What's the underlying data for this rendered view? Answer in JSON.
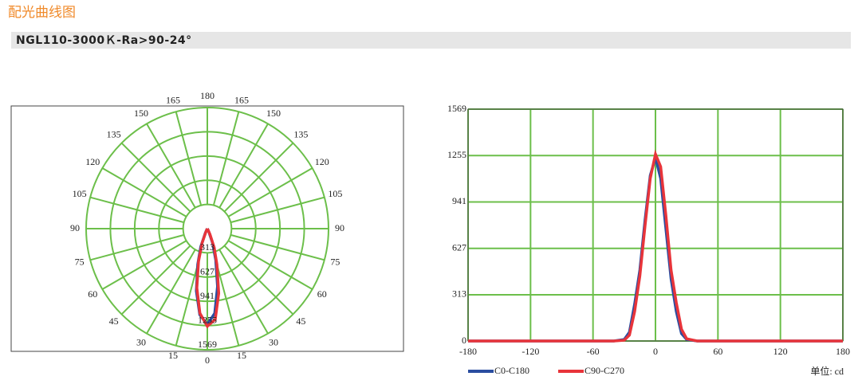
{
  "header": {
    "title": "配光曲线图",
    "model": "NGL110-3000Ｋ-Ra>90-24°"
  },
  "chart_data": [
    {
      "type": "polar",
      "angle_ticks": [
        0,
        15,
        30,
        45,
        60,
        75,
        90,
        105,
        120,
        135,
        150,
        165,
        180
      ],
      "rlim": [
        0,
        1569
      ],
      "rticks": [
        313,
        627,
        941,
        1255,
        1569
      ],
      "grid_color": "#6cbf4a",
      "series": [
        {
          "color": "#2a4da0",
          "x": [
            -180,
            -90,
            -40,
            -30,
            -25,
            -20,
            -15,
            -10,
            -5,
            0,
            5,
            10,
            15,
            20,
            25,
            30,
            40,
            90,
            180
          ],
          "values": [
            0,
            0,
            0,
            10,
            60,
            250,
            480,
            820,
            1120,
            1240,
            1100,
            760,
            420,
            200,
            50,
            10,
            0,
            0,
            0
          ]
        },
        {
          "color": "#e8343a",
          "x": [
            -180,
            -90,
            -40,
            -30,
            -25,
            -20,
            -15,
            -10,
            -5,
            0,
            5,
            10,
            15,
            20,
            25,
            30,
            40,
            90,
            180
          ],
          "values": [
            0,
            0,
            0,
            5,
            40,
            200,
            440,
            780,
            1100,
            1265,
            1180,
            850,
            480,
            260,
            80,
            15,
            0,
            0,
            0
          ]
        }
      ]
    },
    {
      "type": "line",
      "xlim": [
        -180,
        180
      ],
      "xticks": [
        -180,
        -120,
        -60,
        0,
        60,
        120,
        180
      ],
      "ylim": [
        0,
        1569
      ],
      "yticks": [
        0,
        313,
        627,
        941,
        1255,
        1569
      ],
      "grid": true,
      "grid_color": "#6cbf4a",
      "annotation": "单位: cd",
      "series": [
        {
          "name": "C0-C180",
          "color": "#2a4da0",
          "x": [
            -180,
            -90,
            -40,
            -30,
            -25,
            -20,
            -15,
            -10,
            -5,
            0,
            5,
            10,
            15,
            20,
            25,
            30,
            40,
            90,
            180
          ],
          "values": [
            0,
            0,
            0,
            10,
            60,
            250,
            480,
            820,
            1120,
            1240,
            1100,
            760,
            420,
            200,
            50,
            10,
            0,
            0,
            0
          ]
        },
        {
          "name": "C90-C270",
          "color": "#e8343a",
          "x": [
            -180,
            -90,
            -40,
            -30,
            -25,
            -20,
            -15,
            -10,
            -5,
            0,
            5,
            10,
            15,
            20,
            25,
            30,
            40,
            90,
            180
          ],
          "values": [
            0,
            0,
            0,
            5,
            40,
            200,
            440,
            780,
            1100,
            1265,
            1180,
            850,
            480,
            260,
            80,
            15,
            0,
            0,
            0
          ]
        }
      ]
    }
  ]
}
